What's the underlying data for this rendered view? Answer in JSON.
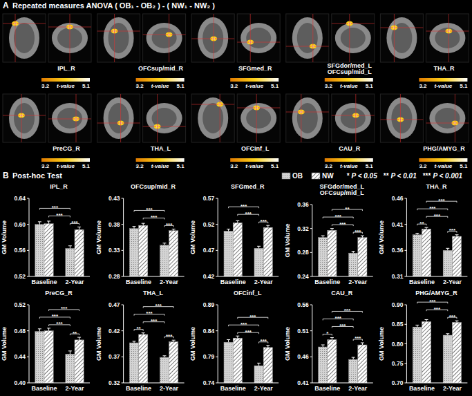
{
  "panel_a": {
    "label": "A",
    "title": "Repeated measures ANOVA ( OB₁ - OB₂ ) - ( NW₁ - NW₂ )",
    "regions": [
      "IPL_R",
      "OFCsup/mid_R",
      "SFGmed_R",
      "SFGdor/med_L\nOFCsup/mid_L",
      "THA_R",
      "PreCG_R",
      "THA_L",
      "OFCinf_L",
      "CAU_R",
      "PHG/AMYG_R"
    ],
    "colorbar": {
      "min": 3.2,
      "max": 5.1,
      "label": "t-value"
    }
  },
  "panel_b": {
    "label": "B",
    "title": "Post-hoc Test",
    "significance_legend": [
      {
        "symbol": "*",
        "label": "P < 0.05"
      },
      {
        "symbol": "**",
        "label": "P < 0.01"
      },
      {
        "symbol": "***",
        "label": "P < 0.001"
      }
    ]
  },
  "chart_data": [
    {
      "type": "bar",
      "title": "IPL_R",
      "categories": [
        "Baseline",
        "2-Year"
      ],
      "ylabel": "GM Volume",
      "ylim": [
        0.52,
        0.64
      ],
      "yticks": [
        0.52,
        0.56,
        {
          "value": 0.6,
          "label": "0.60"
        },
        0.64
      ],
      "series": [
        {
          "name": "OB",
          "color": "#d4d4d4",
          "marker": "dots",
          "values": [
            0.6,
            0.563
          ],
          "errors": [
            0.004,
            0.004
          ]
        },
        {
          "name": "NW",
          "color": "#ffffff",
          "marker": "hatch",
          "values": [
            0.601,
            0.592
          ],
          "errors": [
            0.004,
            0.004
          ]
        }
      ],
      "significance": [
        {
          "from": 2,
          "to": 3,
          "label": "***"
        },
        {
          "from": 1,
          "to": 2,
          "label": "***"
        },
        {
          "from": 0,
          "to": 2,
          "label": "***"
        }
      ]
    },
    {
      "type": "bar",
      "title": "OFCsup/mid_R",
      "categories": [
        "Baseline",
        "2-Year"
      ],
      "ylabel": "GM Volume",
      "ylim": [
        0.28,
        0.43
      ],
      "yticks": [
        0.28,
        0.33,
        0.38,
        0.43
      ],
      "series": [
        {
          "name": "OB",
          "color": "#d4d4d4",
          "marker": "dots",
          "values": [
            0.372,
            0.34
          ],
          "errors": [
            0.004,
            0.004
          ]
        },
        {
          "name": "NW",
          "color": "#ffffff",
          "marker": "hatch",
          "values": [
            0.378,
            0.368
          ],
          "errors": [
            0.004,
            0.003
          ]
        }
      ],
      "significance": [
        {
          "from": 2,
          "to": 3,
          "label": "***"
        },
        {
          "from": 1,
          "to": 2,
          "label": "***"
        },
        {
          "from": 0,
          "to": 2,
          "label": "***"
        }
      ]
    },
    {
      "type": "bar",
      "title": "SFGmed_R",
      "categories": [
        "Baseline",
        "2-Year"
      ],
      "ylabel": "GM Volume",
      "ylim": [
        0.42,
        0.57
      ],
      "yticks": [
        0.42,
        0.47,
        0.52,
        0.57
      ],
      "series": [
        {
          "name": "OB",
          "color": "#d4d4d4",
          "marker": "dots",
          "values": [
            0.507,
            0.474
          ],
          "errors": [
            0.004,
            0.004
          ]
        },
        {
          "name": "NW",
          "color": "#ffffff",
          "marker": "hatch",
          "values": [
            0.523,
            0.514
          ],
          "errors": [
            0.004,
            0.004
          ]
        }
      ],
      "significance": [
        {
          "from": 2,
          "to": 3,
          "label": "***"
        },
        {
          "from": 1,
          "to": 2,
          "label": "***"
        },
        {
          "from": 0,
          "to": 2,
          "label": "***"
        }
      ]
    },
    {
      "type": "bar",
      "title": "SFGdor/med_L\nOFCsup/mid_L",
      "categories": [
        "Baseline",
        "2-Year"
      ],
      "ylabel": "GM Volume",
      "ylim": [
        0.24,
        0.36
      ],
      "yticks": [
        0.24,
        0.28,
        0.32,
        0.36
      ],
      "series": [
        {
          "name": "OB",
          "color": "#d4d4d4",
          "marker": "dots",
          "values": [
            0.305,
            0.279
          ],
          "errors": [
            0.003,
            0.003
          ]
        },
        {
          "name": "NW",
          "color": "#ffffff",
          "marker": "hatch",
          "values": [
            0.317,
            0.305
          ],
          "errors": [
            0.003,
            0.003
          ]
        }
      ],
      "significance": [
        {
          "from": 2,
          "to": 3,
          "label": "***"
        },
        {
          "from": 1,
          "to": 2,
          "label": "***"
        },
        {
          "from": 0,
          "to": 2,
          "label": "***"
        },
        {
          "from": 1,
          "to": 3,
          "label": "**"
        }
      ]
    },
    {
      "type": "bar",
      "title": "THA_R",
      "categories": [
        "Baseline",
        "2-Year"
      ],
      "ylabel": "GM Volume",
      "ylim": [
        0.31,
        0.46
      ],
      "yticks": [
        0.31,
        0.36,
        0.41,
        0.46
      ],
      "series": [
        {
          "name": "OB",
          "color": "#d4d4d4",
          "marker": "dots",
          "values": [
            0.39,
            0.36
          ],
          "errors": [
            0.003,
            0.004
          ]
        },
        {
          "name": "NW",
          "color": "#ffffff",
          "marker": "hatch",
          "values": [
            0.401,
            0.387
          ],
          "errors": [
            0.003,
            0.003
          ]
        }
      ],
      "significance": [
        {
          "from": 0,
          "to": 1,
          "label": "**"
        },
        {
          "from": 2,
          "to": 3,
          "label": "***"
        },
        {
          "from": 1,
          "to": 2,
          "label": "***"
        },
        {
          "from": 0,
          "to": 2,
          "label": "***"
        },
        {
          "from": 1,
          "to": 3,
          "label": "***"
        }
      ]
    },
    {
      "type": "bar",
      "title": "PreCG_R",
      "categories": [
        "Baseline",
        "2-Year"
      ],
      "ylabel": "GM Volume",
      "ylim": [
        0.4,
        0.52
      ],
      "yticks": [
        {
          "value": 0.4,
          "label": "0.40"
        },
        0.44,
        0.48,
        0.52
      ],
      "series": [
        {
          "name": "OB",
          "color": "#d4d4d4",
          "marker": "dots",
          "values": [
            0.479,
            0.444
          ],
          "errors": [
            0.004,
            0.005
          ]
        },
        {
          "name": "NW",
          "color": "#ffffff",
          "marker": "hatch",
          "values": [
            0.48,
            0.466
          ],
          "errors": [
            0.004,
            0.004
          ]
        }
      ],
      "significance": [
        {
          "from": 2,
          "to": 3,
          "label": "**"
        },
        {
          "from": 1,
          "to": 2,
          "label": "***"
        },
        {
          "from": 0,
          "to": 2,
          "label": "***"
        },
        {
          "from": 1,
          "to": 3,
          "label": "***"
        }
      ]
    },
    {
      "type": "bar",
      "title": "THA_L",
      "categories": [
        "Baseline",
        "2-Year"
      ],
      "ylabel": "GM Volume",
      "ylim": [
        0.32,
        0.47
      ],
      "yticks": [
        0.32,
        0.37,
        0.42,
        0.47
      ],
      "series": [
        {
          "name": "OB",
          "color": "#d4d4d4",
          "marker": "dots",
          "values": [
            0.397,
            0.369
          ],
          "errors": [
            0.003,
            0.003
          ]
        },
        {
          "name": "NW",
          "color": "#ffffff",
          "marker": "hatch",
          "values": [
            0.413,
            0.399
          ],
          "errors": [
            0.003,
            0.003
          ]
        }
      ],
      "significance": [
        {
          "from": 0,
          "to": 1,
          "label": "**"
        },
        {
          "from": 2,
          "to": 3,
          "label": "***"
        },
        {
          "from": 1,
          "to": 2,
          "label": "***"
        },
        {
          "from": 0,
          "to": 2,
          "label": "***"
        },
        {
          "from": 1,
          "to": 3,
          "label": "***"
        }
      ]
    },
    {
      "type": "bar",
      "title": "OFCinf_L",
      "categories": [
        "Baseline",
        "2-Year"
      ],
      "ylabel": "GM Volume",
      "ylim": [
        0.74,
        0.89
      ],
      "yticks": [
        0.74,
        0.79,
        0.84,
        0.89
      ],
      "series": [
        {
          "name": "OB",
          "color": "#d4d4d4",
          "marker": "dots",
          "values": [
            0.818,
            0.773
          ],
          "errors": [
            0.005,
            0.005
          ]
        },
        {
          "name": "NW",
          "color": "#ffffff",
          "marker": "hatch",
          "values": [
            0.826,
            0.808
          ],
          "errors": [
            0.004,
            0.004
          ]
        }
      ],
      "significance": [
        {
          "from": 2,
          "to": 3,
          "label": "***"
        },
        {
          "from": 1,
          "to": 2,
          "label": "***"
        },
        {
          "from": 0,
          "to": 2,
          "label": "***"
        },
        {
          "from": 1,
          "to": 3,
          "label": "***"
        }
      ]
    },
    {
      "type": "bar",
      "title": "CAU_R",
      "categories": [
        "Baseline",
        "2-Year"
      ],
      "ylabel": "GM Volume",
      "ylim": [
        0.41,
        0.56
      ],
      "yticks": [
        0.41,
        0.46,
        0.51,
        0.56
      ],
      "series": [
        {
          "name": "OB",
          "color": "#d4d4d4",
          "marker": "dots",
          "values": [
            0.479,
            0.455
          ],
          "errors": [
            0.004,
            0.004
          ]
        },
        {
          "name": "NW",
          "color": "#ffffff",
          "marker": "hatch",
          "values": [
            0.493,
            0.483
          ],
          "errors": [
            0.004,
            0.004
          ]
        }
      ],
      "significance": [
        {
          "from": 0,
          "to": 1,
          "label": "*"
        },
        {
          "from": 2,
          "to": 3,
          "label": "***"
        },
        {
          "from": 1,
          "to": 2,
          "label": "***"
        },
        {
          "from": 0,
          "to": 2,
          "label": "***"
        },
        {
          "from": 1,
          "to": 3,
          "label": "***"
        }
      ]
    },
    {
      "type": "bar",
      "title": "PHG/AMYG_R",
      "categories": [
        "Baseline",
        "2-Year"
      ],
      "ylabel": "GM Volume",
      "ylim": [
        0.7,
        0.9
      ],
      "yticks": [
        {
          "value": 0.7,
          "label": "0.70"
        },
        0.75,
        {
          "value": 0.8,
          "label": "0.80"
        },
        0.85,
        {
          "value": 0.9,
          "label": "0.90"
        }
      ],
      "series": [
        {
          "name": "OB",
          "color": "#d4d4d4",
          "marker": "dots",
          "values": [
            0.843,
            0.822
          ],
          "errors": [
            0.005,
            0.004
          ]
        },
        {
          "name": "NW",
          "color": "#ffffff",
          "marker": "hatch",
          "values": [
            0.857,
            0.855
          ],
          "errors": [
            0.005,
            0.004
          ]
        }
      ],
      "significance": [
        {
          "from": 2,
          "to": 3,
          "label": "***"
        },
        {
          "from": 1,
          "to": 2,
          "label": "***"
        },
        {
          "from": 0,
          "to": 2,
          "label": "***"
        }
      ]
    }
  ]
}
